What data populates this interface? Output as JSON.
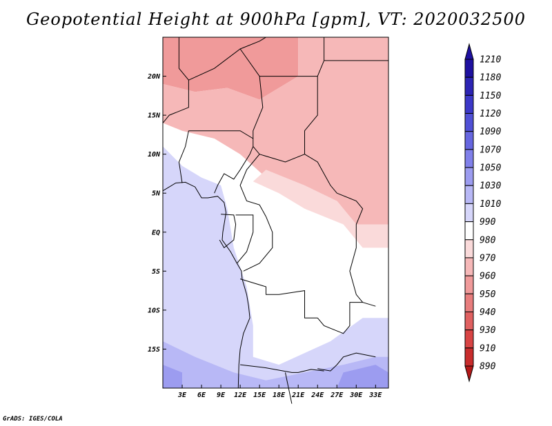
{
  "title": "Geopotential Height at 900hPa [gpm], VT: 2020032500",
  "credit": "GrADS: IGES/COLA",
  "chart_data": {
    "type": "heatmap",
    "variable": "Geopotential Height",
    "level": "900hPa",
    "units": "gpm",
    "valid_time": "2020032500",
    "lon_range": [
      0,
      35
    ],
    "lat_range": [
      -20,
      25
    ],
    "x_ticks": [
      {
        "lon": 3,
        "label": "3E"
      },
      {
        "lon": 6,
        "label": "6E"
      },
      {
        "lon": 9,
        "label": "9E"
      },
      {
        "lon": 12,
        "label": "12E"
      },
      {
        "lon": 15,
        "label": "15E"
      },
      {
        "lon": 18,
        "label": "18E"
      },
      {
        "lon": 21,
        "label": "21E"
      },
      {
        "lon": 24,
        "label": "24E"
      },
      {
        "lon": 27,
        "label": "27E"
      },
      {
        "lon": 30,
        "label": "30E"
      },
      {
        "lon": 33,
        "label": "33E"
      }
    ],
    "y_ticks": [
      {
        "lat": 20,
        "label": "20N"
      },
      {
        "lat": 15,
        "label": "15N"
      },
      {
        "lat": 10,
        "label": "10N"
      },
      {
        "lat": 5,
        "label": "5N"
      },
      {
        "lat": 0,
        "label": "EQ"
      },
      {
        "lat": -5,
        "label": "5S"
      },
      {
        "lat": -10,
        "label": "10S"
      },
      {
        "lat": -15,
        "label": "15S"
      }
    ],
    "colorbar": {
      "levels": [
        1210,
        1180,
        1150,
        1120,
        1090,
        1070,
        1050,
        1030,
        1010,
        990,
        980,
        970,
        960,
        950,
        940,
        930,
        910,
        890
      ],
      "colors": [
        "#1e10a0",
        "#2c24b4",
        "#3c38c8",
        "#5050d6",
        "#6666e0",
        "#8080ea",
        "#9c9cf0",
        "#b8b8f6",
        "#d6d6fa",
        "#ffffff",
        "#fadada",
        "#f6b8b8",
        "#f09a9a",
        "#e87d7d",
        "#e06060",
        "#d84444",
        "#c82c2c",
        "#b41818"
      ]
    },
    "regions": [
      {
        "name": "sahara-north-high",
        "color": "#e87d7d",
        "points": [
          [
            6,
            25
          ],
          [
            16,
            25
          ],
          [
            17,
            23.5
          ],
          [
            13,
            22
          ],
          [
            8,
            21.5
          ],
          [
            5,
            22.5
          ]
        ]
      },
      {
        "name": "sahara-core-peak",
        "color": "#d84444",
        "points": [
          [
            6,
            25
          ],
          [
            15,
            25
          ],
          [
            14,
            23.8
          ],
          [
            9,
            23.5
          ],
          [
            6.5,
            24
          ]
        ]
      },
      {
        "name": "sahara-mid",
        "color": "#f09a9a",
        "points": [
          [
            0,
            25
          ],
          [
            21,
            25
          ],
          [
            21,
            20
          ],
          [
            15,
            17
          ],
          [
            10,
            18.5
          ],
          [
            5,
            18
          ],
          [
            0,
            19
          ]
        ]
      },
      {
        "name": "sudan-red-patch",
        "color": "#f09a9a",
        "points": [
          [
            25,
            21
          ],
          [
            32,
            20
          ],
          [
            33,
            12
          ],
          [
            30,
            9
          ],
          [
            26,
            11
          ],
          [
            24,
            15
          ]
        ]
      },
      {
        "name": "sahel-pink",
        "color": "#f6b8b8",
        "points": [
          [
            0,
            19
          ],
          [
            5,
            18
          ],
          [
            10,
            18.5
          ],
          [
            15,
            17
          ],
          [
            21,
            20
          ],
          [
            21,
            25
          ],
          [
            35,
            25
          ],
          [
            35,
            1
          ],
          [
            30,
            1
          ],
          [
            27,
            4
          ],
          [
            22,
            5
          ],
          [
            16,
            7
          ],
          [
            12,
            10
          ],
          [
            8,
            12
          ],
          [
            3,
            13
          ],
          [
            0,
            14
          ]
        ]
      },
      {
        "name": "north-congo-light",
        "color": "#fadada",
        "points": [
          [
            16,
            8
          ],
          [
            22,
            6
          ],
          [
            27,
            4
          ],
          [
            30,
            1
          ],
          [
            35,
            1
          ],
          [
            35,
            -2
          ],
          [
            31,
            -2
          ],
          [
            28,
            1
          ],
          [
            22,
            3
          ],
          [
            18,
            5
          ],
          [
            14,
            6.5
          ]
        ]
      },
      {
        "name": "gulf-guinea-blue",
        "color": "#d6d6fa",
        "points": [
          [
            0,
            11
          ],
          [
            3,
            8.5
          ],
          [
            6,
            7
          ],
          [
            9,
            6
          ],
          [
            10,
            3
          ],
          [
            11,
            -2
          ],
          [
            13,
            -7
          ],
          [
            14,
            -12
          ],
          [
            14,
            -16
          ],
          [
            18,
            -17
          ],
          [
            26,
            -14
          ],
          [
            31,
            -11
          ],
          [
            35,
            -11
          ],
          [
            35,
            -20
          ],
          [
            0,
            -20
          ]
        ]
      },
      {
        "name": "south-blue",
        "color": "#b8b8f6",
        "points": [
          [
            0,
            -14
          ],
          [
            5,
            -16
          ],
          [
            11,
            -18
          ],
          [
            16,
            -19
          ],
          [
            22,
            -18
          ],
          [
            28,
            -17
          ],
          [
            33,
            -16
          ],
          [
            35,
            -16
          ],
          [
            35,
            -20
          ],
          [
            0,
            -20
          ]
        ]
      },
      {
        "name": "south-deep-blue",
        "color": "#9c9cf0",
        "points": [
          [
            0,
            -17
          ],
          [
            3,
            -18
          ],
          [
            3,
            -20
          ],
          [
            0,
            -20
          ]
        ]
      },
      {
        "name": "southeast-deep-blue",
        "color": "#9c9cf0",
        "points": [
          [
            28,
            -18
          ],
          [
            33,
            -17
          ],
          [
            35,
            -18
          ],
          [
            35,
            -20
          ],
          [
            27,
            -20
          ]
        ]
      }
    ],
    "borders": [
      [
        [
          2.5,
          25
        ],
        [
          2.5,
          21
        ],
        [
          4,
          19.5
        ],
        [
          4,
          16
        ],
        [
          1,
          15
        ],
        [
          0,
          14
        ]
      ],
      [
        [
          4,
          19.5
        ],
        [
          8,
          21
        ],
        [
          12,
          23.5
        ],
        [
          15,
          24.5
        ],
        [
          16,
          25
        ]
      ],
      [
        [
          12,
          23.5
        ],
        [
          15,
          20
        ],
        [
          15.5,
          16
        ],
        [
          14,
          13
        ],
        [
          14,
          12
        ]
      ],
      [
        [
          4,
          13
        ],
        [
          9,
          13
        ],
        [
          12,
          13
        ],
        [
          14,
          12
        ],
        [
          14,
          11
        ]
      ],
      [
        [
          14,
          11
        ],
        [
          15,
          10
        ],
        [
          13,
          8
        ],
        [
          12,
          6
        ],
        [
          13,
          4
        ],
        [
          15,
          3.5
        ],
        [
          16,
          2
        ]
      ],
      [
        [
          15,
          10
        ],
        [
          19,
          9
        ],
        [
          22,
          10
        ],
        [
          24,
          9
        ],
        [
          26,
          6
        ],
        [
          27,
          5
        ]
      ],
      [
        [
          15,
          20
        ],
        [
          21,
          20
        ],
        [
          24,
          20
        ],
        [
          24,
          15
        ],
        [
          22,
          13
        ],
        [
          22,
          10
        ]
      ],
      [
        [
          24,
          20
        ],
        [
          25,
          22
        ],
        [
          25,
          25
        ]
      ],
      [
        [
          25,
          22
        ],
        [
          35,
          22
        ]
      ],
      [
        [
          27,
          5
        ],
        [
          30,
          4
        ],
        [
          31,
          3
        ],
        [
          30,
          1
        ],
        [
          30,
          -2
        ],
        [
          29,
          -5
        ],
        [
          30,
          -8
        ],
        [
          31,
          -9
        ],
        [
          33,
          -9.5
        ]
      ],
      [
        [
          9,
          2.3
        ],
        [
          11,
          2.2
        ],
        [
          11.3,
          1
        ],
        [
          11,
          -1
        ],
        [
          9.5,
          -2
        ],
        [
          8.8,
          -1
        ]
      ],
      [
        [
          11.3,
          2.2
        ],
        [
          14,
          2.2
        ],
        [
          14,
          0
        ],
        [
          13,
          -2.5
        ],
        [
          11.5,
          -4
        ]
      ],
      [
        [
          16,
          2
        ],
        [
          17,
          0
        ],
        [
          17,
          -2
        ],
        [
          15,
          -4
        ],
        [
          12.5,
          -5
        ]
      ],
      [
        [
          12,
          -6
        ],
        [
          16,
          -7
        ],
        [
          16,
          -8
        ],
        [
          18,
          -8
        ],
        [
          22,
          -7.5
        ],
        [
          22,
          -11
        ],
        [
          24,
          -11
        ]
      ],
      [
        [
          12,
          -17
        ],
        [
          16,
          -17.4
        ],
        [
          20,
          -18
        ],
        [
          21,
          -18
        ],
        [
          23,
          -17.6
        ],
        [
          25,
          -17.8
        ]
      ],
      [
        [
          24,
          -11
        ],
        [
          25,
          -12
        ],
        [
          28,
          -13
        ],
        [
          29,
          -12
        ],
        [
          29,
          -9
        ],
        [
          31,
          -9
        ]
      ],
      [
        [
          19,
          -18
        ],
        [
          20,
          -22
        ]
      ],
      [
        [
          24,
          -17.5
        ],
        [
          26,
          -17.8
        ],
        [
          27,
          -17
        ],
        [
          28,
          -16
        ],
        [
          30,
          -15.5
        ],
        [
          33,
          -16
        ]
      ],
      [
        [
          8,
          5
        ],
        [
          8.5,
          6
        ],
        [
          9.5,
          7.5
        ],
        [
          11,
          6.8
        ],
        [
          12,
          8
        ],
        [
          13.5,
          10
        ],
        [
          14,
          11
        ]
      ],
      [
        [
          3,
          6.3
        ],
        [
          2.5,
          9
        ],
        [
          3.5,
          11
        ],
        [
          4,
          13
        ]
      ]
    ],
    "coastline": [
      [
        0,
        5.3
      ],
      [
        2,
        6.3
      ],
      [
        3.5,
        6.4
      ],
      [
        5,
        5.8
      ],
      [
        6,
        4.4
      ],
      [
        7,
        4.4
      ],
      [
        8.5,
        4.6
      ],
      [
        9.5,
        3.8
      ],
      [
        9.8,
        2.5
      ],
      [
        9.5,
        1
      ],
      [
        9.3,
        0
      ],
      [
        9.2,
        -1
      ],
      [
        10.5,
        -2.5
      ],
      [
        11.5,
        -4
      ],
      [
        12.2,
        -5
      ],
      [
        12.3,
        -6
      ],
      [
        13,
        -8
      ],
      [
        13.3,
        -9.5
      ],
      [
        13.5,
        -11
      ],
      [
        12.5,
        -13
      ],
      [
        12,
        -15
      ],
      [
        11.8,
        -17
      ],
      [
        11.7,
        -20
      ]
    ]
  }
}
